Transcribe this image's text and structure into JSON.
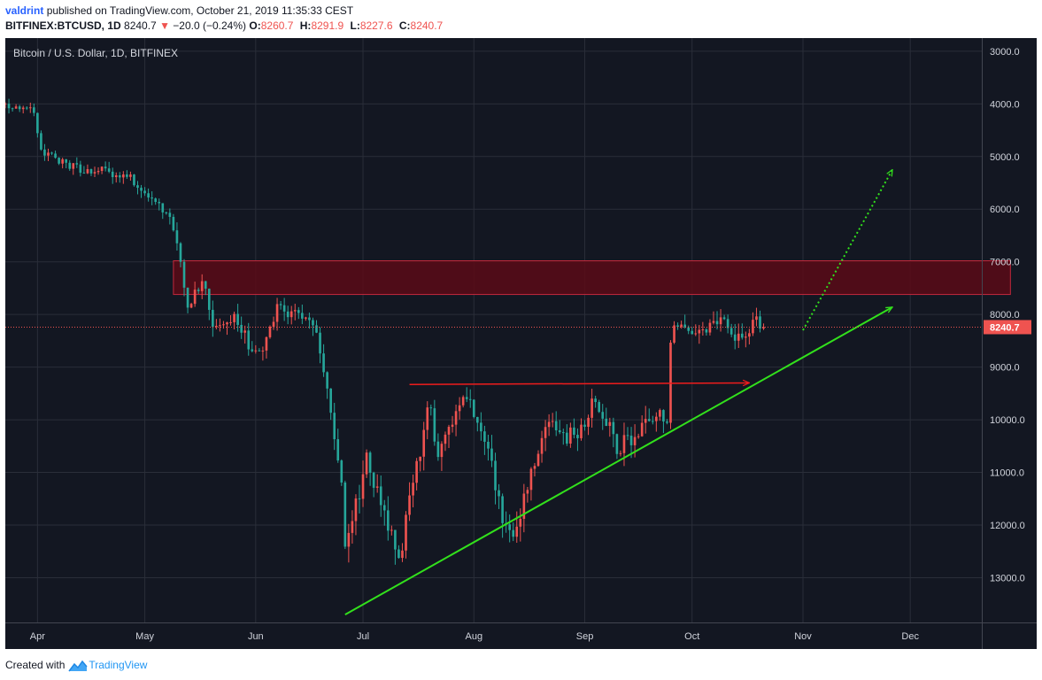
{
  "header": {
    "author": "valdrint",
    "published": "published on TradingView.com, October 21, 2019 11:35:33 CEST",
    "symbol": "BITFINEX:BTCUSD, 1D",
    "price": "8240.7",
    "change_arrow": "▼",
    "change": "−20.0 (−0.24%)",
    "ohlc": [
      {
        "k": "O:",
        "v": "8260.7"
      },
      {
        "k": "H:",
        "v": "8291.9"
      },
      {
        "k": "L:",
        "v": "8227.6"
      },
      {
        "k": "C:",
        "v": "8240.7"
      }
    ]
  },
  "footer": {
    "created_with": "Created with",
    "brand": "TradingView"
  },
  "colors": {
    "up": "#26a69a",
    "down": "#ef5350",
    "resistance_fill": "#5a0a16",
    "resistance_stroke": "#c2283c",
    "trendline": "#32e01c",
    "horizontal": "#ef1c1c",
    "last_price_tag": "#ef5350",
    "background": "#131722"
  },
  "chart_data": {
    "type": "candlestick",
    "title": "Bitcoin / U.S. Dollar, 1D, BITFINEX",
    "y_scale": "inverted",
    "ylim": [
      2750,
      13850
    ],
    "y_ticks": [
      "3000.0",
      "4000.0",
      "5000.0",
      "6000.0",
      "7000.0",
      "8000.0",
      "9000.0",
      "10000.0",
      "11000.0",
      "12000.0",
      "13000.0"
    ],
    "x_range": [
      "2019-03-23",
      "2019-12-21"
    ],
    "x_ticks": [
      {
        "date": "2019-04-01",
        "label": "Apr"
      },
      {
        "date": "2019-05-01",
        "label": "May"
      },
      {
        "date": "2019-06-01",
        "label": "Jun"
      },
      {
        "date": "2019-07-01",
        "label": "Jul"
      },
      {
        "date": "2019-08-01",
        "label": "Aug"
      },
      {
        "date": "2019-09-01",
        "label": "Sep"
      },
      {
        "date": "2019-10-01",
        "label": "Oct"
      },
      {
        "date": "2019-11-01",
        "label": "Nov"
      },
      {
        "date": "2019-12-01",
        "label": "Dec"
      }
    ],
    "last_price": "8240.7",
    "anchor_closes": [
      [
        "2019-03-23",
        4000
      ],
      [
        "2019-03-31",
        4140
      ],
      [
        "2019-04-02",
        4900
      ],
      [
        "2019-04-10",
        5200
      ],
      [
        "2019-04-22",
        5300
      ],
      [
        "2019-04-28",
        5450
      ],
      [
        "2019-05-04",
        5900
      ],
      [
        "2019-05-08",
        6100
      ],
      [
        "2019-05-11",
        7100
      ],
      [
        "2019-05-13",
        7800
      ],
      [
        "2019-05-17",
        7400
      ],
      [
        "2019-05-20",
        8100
      ],
      [
        "2019-05-26",
        8000
      ],
      [
        "2019-05-30",
        8600
      ],
      [
        "2019-06-03",
        8800
      ],
      [
        "2019-06-07",
        7900
      ],
      [
        "2019-06-14",
        8100
      ],
      [
        "2019-06-18",
        8300
      ],
      [
        "2019-06-22",
        9800
      ],
      [
        "2019-06-25",
        11000
      ],
      [
        "2019-06-26",
        12600
      ],
      [
        "2019-06-28",
        11900
      ],
      [
        "2019-07-02",
        10800
      ],
      [
        "2019-07-05",
        11300
      ],
      [
        "2019-07-09",
        12100
      ],
      [
        "2019-07-11",
        12800
      ],
      [
        "2019-07-13",
        11800
      ],
      [
        "2019-07-15",
        11200
      ],
      [
        "2019-07-17",
        10600
      ],
      [
        "2019-07-19",
        9600
      ],
      [
        "2019-07-22",
        10600
      ],
      [
        "2019-07-26",
        10100
      ],
      [
        "2019-07-30",
        9600
      ],
      [
        "2019-08-05",
        10500
      ],
      [
        "2019-08-09",
        11900
      ],
      [
        "2019-08-11",
        12200
      ],
      [
        "2019-08-15",
        11600
      ],
      [
        "2019-08-17",
        11000
      ],
      [
        "2019-08-21",
        10100
      ],
      [
        "2019-08-26",
        10300
      ],
      [
        "2019-09-01",
        10200
      ],
      [
        "2019-09-03",
        9600
      ],
      [
        "2019-09-07",
        10000
      ],
      [
        "2019-09-10",
        10500
      ],
      [
        "2019-09-14",
        10400
      ],
      [
        "2019-09-17",
        10200
      ],
      [
        "2019-09-20",
        10000
      ],
      [
        "2019-09-24",
        9900
      ],
      [
        "2019-09-25",
        8400
      ],
      [
        "2019-09-28",
        8100
      ],
      [
        "2019-10-01",
        8300
      ],
      [
        "2019-10-05",
        8200
      ],
      [
        "2019-10-09",
        8100
      ],
      [
        "2019-10-12",
        8400
      ],
      [
        "2019-10-16",
        8300
      ],
      [
        "2019-10-19",
        8100
      ],
      [
        "2019-10-21",
        8240.7
      ]
    ],
    "annotations": {
      "resistance_zone": {
        "x": [
          "2019-05-09",
          "2019-12-29"
        ],
        "y": [
          6980,
          7620
        ]
      },
      "ascending_trendline": {
        "from": [
          "2019-06-26",
          13700
        ],
        "to": [
          "2019-11-26",
          7860
        ]
      },
      "horizontal_arrow": {
        "from": [
          "2019-07-14",
          9330
        ],
        "to": [
          "2019-10-17",
          9300
        ]
      },
      "projection_arrow": {
        "from": [
          "2019-11-01",
          8300
        ],
        "to": [
          "2019-11-26",
          5250
        ]
      }
    }
  }
}
